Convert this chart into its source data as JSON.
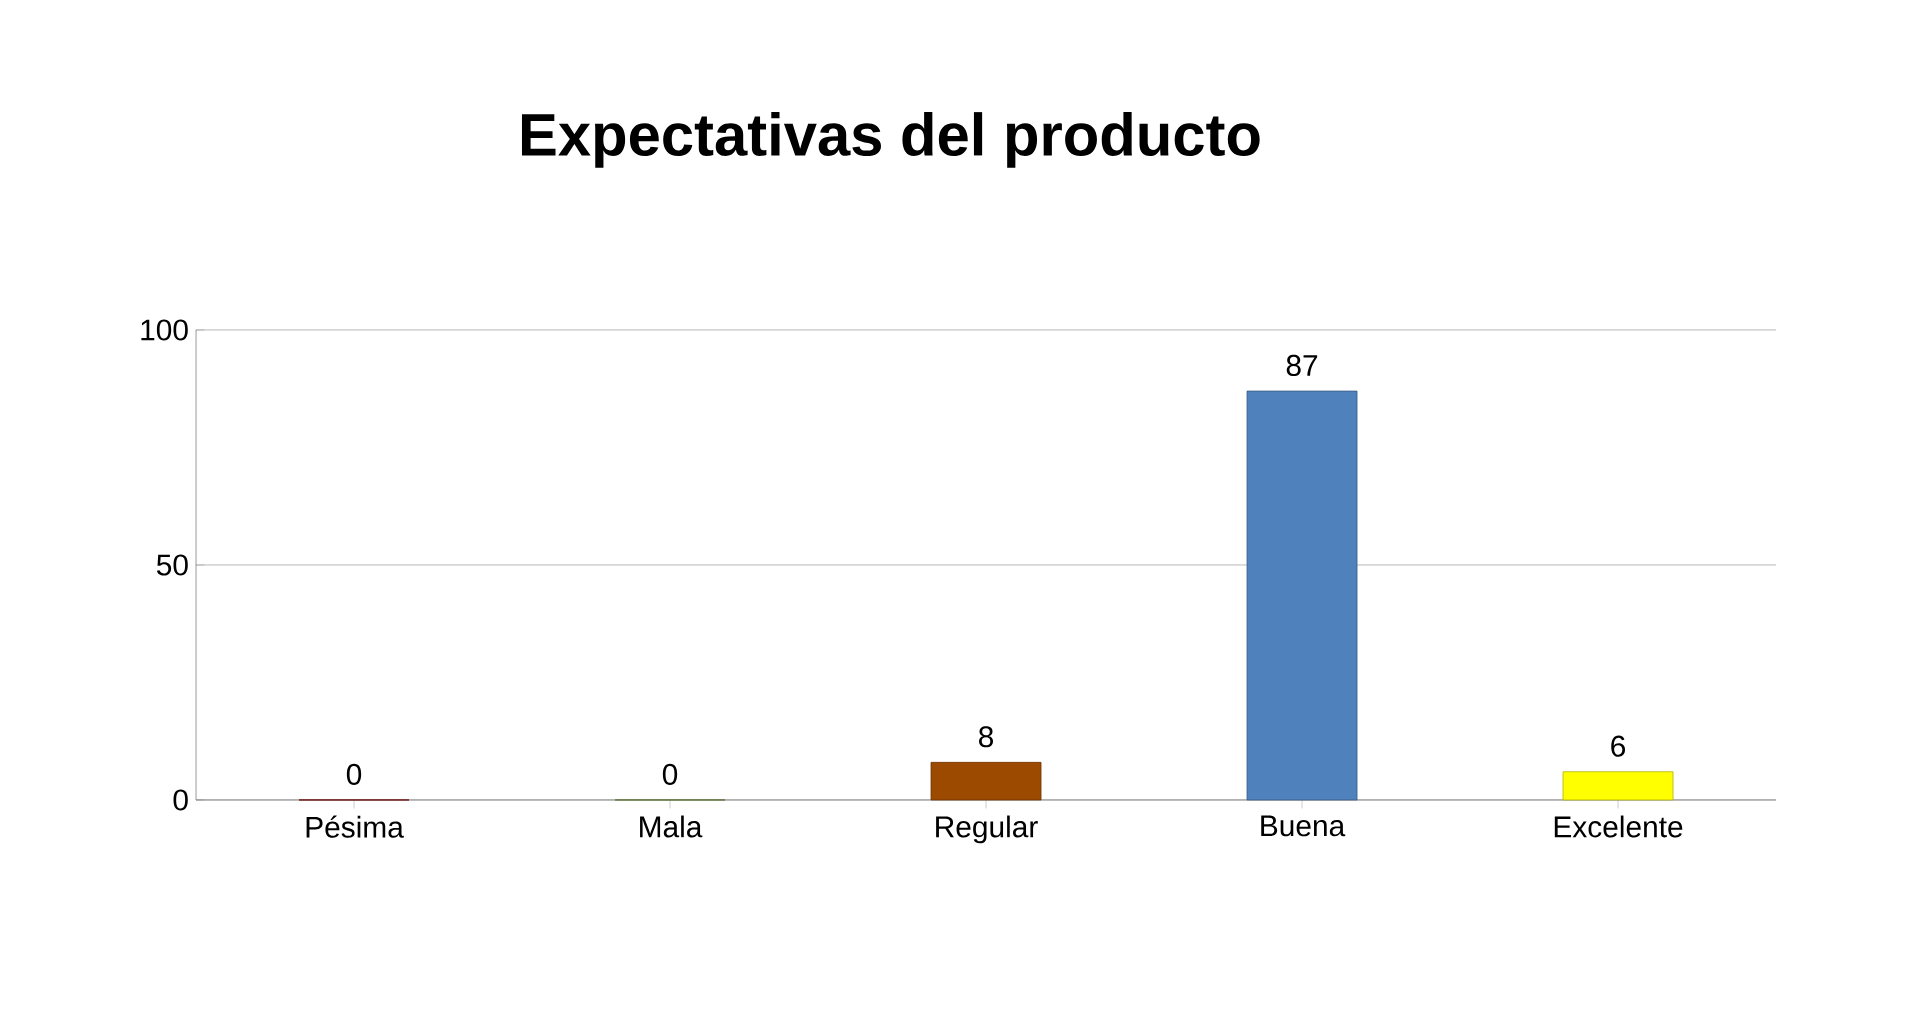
{
  "chart_data": {
    "type": "bar",
    "title": "Expectativas del producto",
    "categories": [
      "Pésima",
      "Mala",
      "Regular",
      "Buena",
      "Excelente"
    ],
    "values": [
      0,
      0,
      8,
      87,
      6
    ],
    "colors": [
      "#990000",
      "#77a03a",
      "#9c4a00",
      "#4f81bd",
      "#ffff00"
    ],
    "ylim": [
      0,
      100
    ],
    "yticks": [
      0,
      50,
      100
    ],
    "grid": "y",
    "data_labels": true
  }
}
